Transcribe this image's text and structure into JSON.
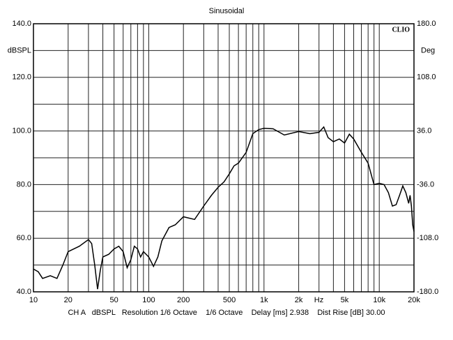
{
  "chart_data": {
    "type": "line",
    "title": "Sinusoidal",
    "brand": "CLIO",
    "ylabel": "dBSPL",
    "y2label": "Deg",
    "xlabel": "Hz",
    "footer": "CH A   dBSPL   Resolution 1/6 Octave    1/6 Octave    Delay [ms] 2.938    Dist Rise [dB] 30.00",
    "log_x": true,
    "grid": true,
    "xlim": [
      10,
      20000
    ],
    "xticks": [
      10,
      20,
      50,
      100,
      200,
      500,
      {
        "value": 1000,
        "label": "1k"
      },
      {
        "value": 2000,
        "label": "2k"
      },
      {
        "value": 5000,
        "label": "5k"
      },
      {
        "value": 10000,
        "label": "10k"
      },
      {
        "value": 20000,
        "label": "20k"
      }
    ],
    "xgrid": [
      10,
      20,
      30,
      40,
      50,
      60,
      70,
      80,
      90,
      100,
      200,
      300,
      400,
      500,
      600,
      700,
      800,
      900,
      1000,
      2000,
      3000,
      4000,
      5000,
      6000,
      7000,
      8000,
      9000,
      10000,
      20000
    ],
    "ylim": [
      40,
      140
    ],
    "yticks": [
      {
        "value": 40,
        "label": "40.0"
      },
      {
        "value": 60,
        "label": "60.0"
      },
      {
        "value": 80,
        "label": "80.0"
      },
      {
        "value": 100,
        "label": "100.0"
      },
      {
        "value": 120,
        "label": "120.0"
      },
      {
        "value": 140,
        "label": "140.0"
      }
    ],
    "ygrid": [
      50,
      70,
      90,
      110,
      130
    ],
    "y2lim": [
      -180,
      180
    ],
    "y2ticks": [
      {
        "value": -180,
        "label": "-180.0"
      },
      {
        "value": -108,
        "label": "-108.0"
      },
      {
        "value": -36,
        "label": "-36.0"
      },
      {
        "value": 36,
        "label": "36.0"
      },
      {
        "value": 108,
        "label": "108.0"
      },
      {
        "value": 180,
        "label": "180.0"
      }
    ],
    "x": [
      10,
      11,
      12,
      14,
      16,
      18,
      20,
      25,
      30,
      32,
      34,
      36,
      38,
      40,
      45,
      50,
      55,
      60,
      65,
      70,
      75,
      80,
      85,
      90,
      100,
      110,
      120,
      130,
      150,
      170,
      200,
      250,
      300,
      350,
      400,
      450,
      500,
      550,
      600,
      700,
      800,
      900,
      1000,
      1200,
      1500,
      2000,
      2500,
      3000,
      3300,
      3600,
      4000,
      4500,
      5000,
      5500,
      6000,
      7000,
      8000,
      9000,
      10000,
      11000,
      12000,
      13000,
      14000,
      15000,
      16000,
      17000,
      18000,
      18500,
      19000,
      19500,
      20000
    ],
    "series": [
      {
        "name": "CH A",
        "color": "#000000",
        "values": [
          48.5,
          47.5,
          45,
          46,
          45,
          50,
          55,
          57,
          59.5,
          58,
          50,
          41,
          48,
          53,
          54,
          56,
          57,
          55,
          49,
          52,
          57,
          56,
          53,
          55,
          53,
          49.5,
          53,
          59,
          64,
          65,
          68,
          67,
          72,
          76,
          79,
          81,
          84,
          87,
          88,
          92,
          99,
          100.5,
          101,
          100.8,
          98.5,
          99.8,
          99,
          99.5,
          101.5,
          97.5,
          96,
          97,
          95.5,
          98.8,
          97,
          92,
          88,
          80,
          80.5,
          80,
          77,
          72,
          72.5,
          76,
          79.5,
          77,
          73,
          76,
          72,
          65,
          62.5
        ]
      }
    ]
  }
}
